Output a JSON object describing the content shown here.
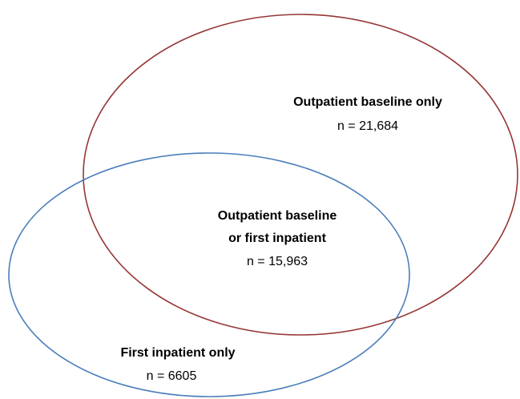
{
  "regions": [
    {
      "lines": [
        "Outpatient baseline only"
      ],
      "count": "n = 21,684"
    },
    {
      "lines": [
        "Outpatient baseline",
        "or first inpatient"
      ],
      "count": "n = 15,963"
    },
    {
      "lines": [
        "First inpatient only"
      ],
      "count": "n = 6605"
    }
  ]
}
